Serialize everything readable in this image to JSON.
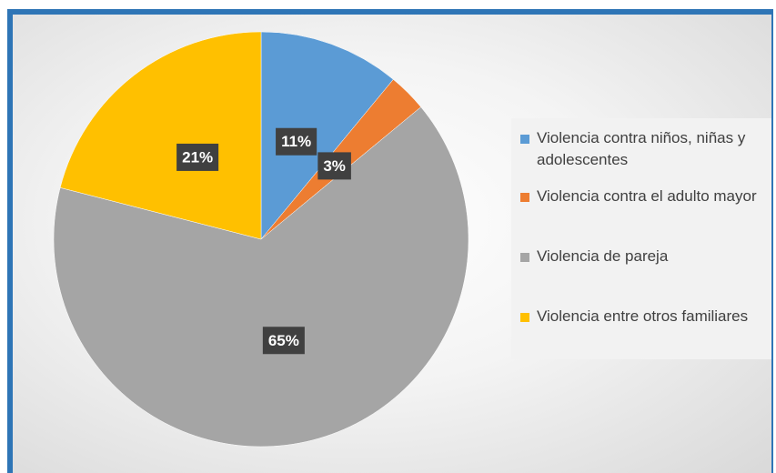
{
  "chart_data": {
    "type": "pie",
    "categories": [
      "Violencia contra niños, niñas y adolescentes",
      "Violencia contra el adulto mayor",
      "Violencia de pareja",
      "Violencia entre otros familiares"
    ],
    "values": [
      11,
      3,
      65,
      21
    ],
    "value_labels": [
      "11%",
      "3%",
      "65%",
      "21%"
    ],
    "colors": [
      "#5b9bd5",
      "#ed7d31",
      "#a5a5a5",
      "#ffc000"
    ],
    "legend": "right"
  }
}
